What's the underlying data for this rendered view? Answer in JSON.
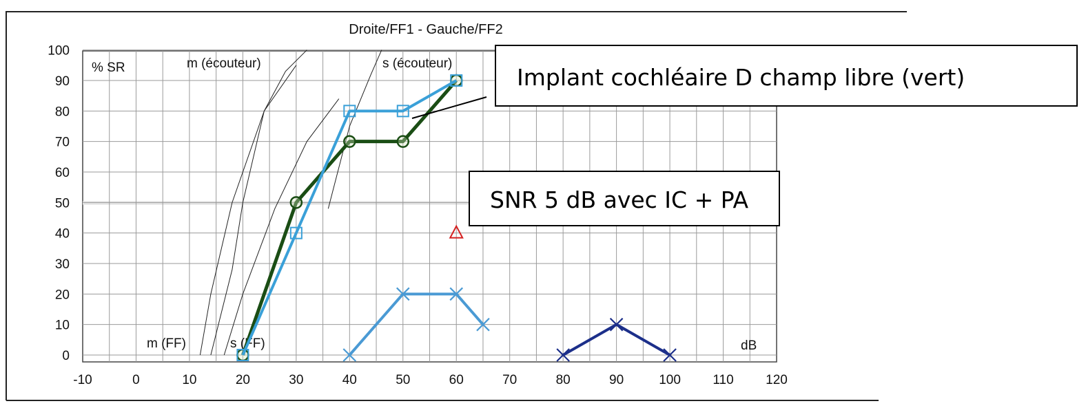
{
  "chart_data": {
    "type": "line",
    "title": "Droite/FF1 - Gauche/FF2",
    "ylabel": "% SR",
    "xlabel": "dB",
    "xlim": [
      -10,
      120
    ],
    "ylim": [
      0,
      100
    ],
    "x_ticks": [
      -10,
      0,
      10,
      20,
      30,
      40,
      50,
      60,
      70,
      80,
      90,
      100,
      110,
      120
    ],
    "y_ticks": [
      0,
      10,
      20,
      30,
      40,
      50,
      60,
      70,
      80,
      90,
      100
    ],
    "grid": true,
    "reference_curves": [
      {
        "name": "m (écouteur)",
        "points": [
          [
            14,
            0
          ],
          [
            18,
            28
          ],
          [
            20,
            50
          ],
          [
            24,
            80
          ],
          [
            28,
            93
          ],
          [
            32,
            100
          ]
        ]
      },
      {
        "name": "s (écouteur)",
        "points": [
          [
            36,
            48
          ],
          [
            40,
            75
          ],
          [
            44,
            92
          ],
          [
            46,
            100
          ]
        ]
      },
      {
        "name": "m (FF)",
        "points": [
          [
            12,
            0
          ],
          [
            14,
            20
          ],
          [
            18,
            50
          ],
          [
            24,
            80
          ],
          [
            30,
            95
          ]
        ]
      },
      {
        "name": "s (FF)",
        "points": [
          [
            16.5,
            0
          ],
          [
            20,
            20
          ],
          [
            26,
            48
          ],
          [
            32,
            70
          ],
          [
            38,
            84
          ]
        ]
      }
    ],
    "series": [
      {
        "color": "#1a4d14",
        "marker": "circle",
        "points": [
          [
            20,
            0
          ],
          [
            30,
            50
          ],
          [
            40,
            70
          ],
          [
            50,
            70
          ],
          [
            60,
            90
          ]
        ]
      },
      {
        "color": "#3aa0d8",
        "marker": "square",
        "points": [
          [
            20,
            0
          ],
          [
            30,
            40
          ],
          [
            40,
            80
          ],
          [
            50,
            80
          ],
          [
            60,
            90
          ]
        ]
      },
      {
        "color": "#4a9ad4",
        "marker": "x",
        "points": [
          [
            40,
            0
          ],
          [
            50,
            20
          ],
          [
            60,
            20
          ],
          [
            65,
            10
          ]
        ]
      },
      {
        "color": "#1c2f8a",
        "marker": "x",
        "points": [
          [
            80,
            0
          ],
          [
            90,
            10
          ],
          [
            100,
            0
          ]
        ]
      },
      {
        "color": "#d42020",
        "marker": "triangle",
        "points": [
          [
            60,
            40
          ]
        ]
      }
    ],
    "annotations": [
      "Implant cochléaire D champ libre (vert)",
      "SNR 5 dB avec IC + PA"
    ]
  }
}
